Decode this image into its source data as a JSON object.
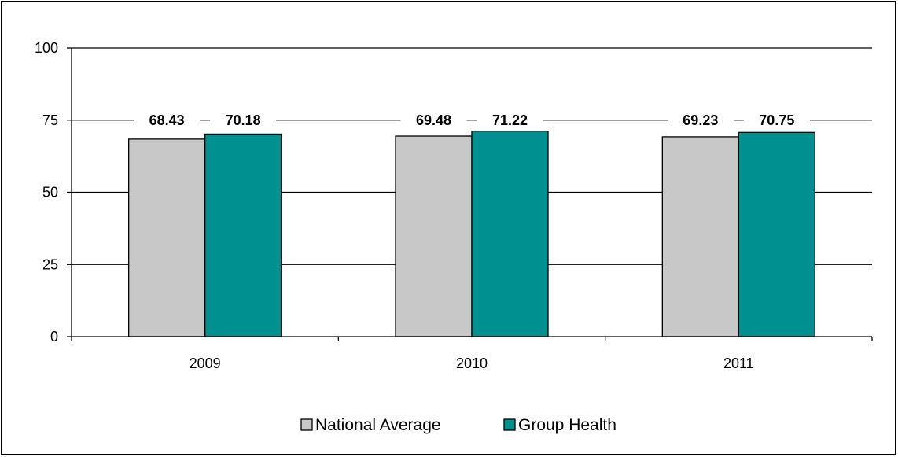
{
  "chart_data": {
    "type": "bar",
    "categories": [
      "2009",
      "2010",
      "2011"
    ],
    "series": [
      {
        "name": "National Average",
        "values": [
          68.43,
          69.48,
          69.23
        ],
        "color": "#c8c8c8"
      },
      {
        "name": "Group Health",
        "values": [
          70.18,
          71.22,
          70.75
        ],
        "color": "#009090"
      }
    ],
    "data_labels": [
      [
        "68.43",
        "69.48",
        "69.23"
      ],
      [
        "70.18",
        "71.22",
        "70.75"
      ]
    ],
    "title": "",
    "xlabel": "",
    "ylabel": "",
    "ylim": [
      0,
      100
    ],
    "yticks": [
      "0",
      "25",
      "50",
      "75",
      "100"
    ],
    "grid": true,
    "legend": "bottom"
  }
}
